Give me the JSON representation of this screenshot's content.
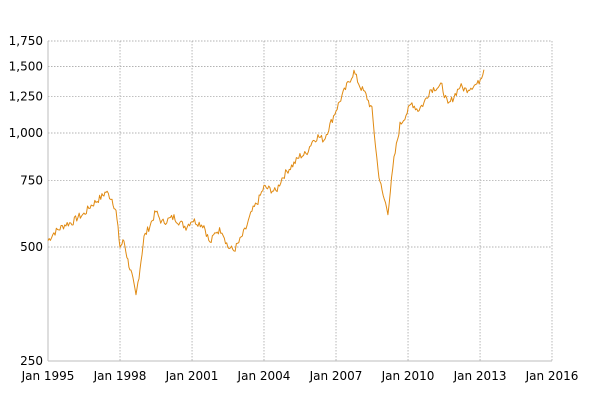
{
  "chart_data": {
    "type": "line",
    "y_scale": "log",
    "grid": true,
    "legend": "none",
    "line_color": "#e08a12",
    "grid_color": "#9a9a9a",
    "xlim": [
      "1995-01-01",
      "2016-01-01"
    ],
    "ylim": [
      250,
      1750
    ],
    "x_ticks": [
      {
        "date": "1995-01-01",
        "label": "Jan 1995"
      },
      {
        "date": "1998-01-01",
        "label": "Jan 1998"
      },
      {
        "date": "2001-01-01",
        "label": "Jan 2001"
      },
      {
        "date": "2004-01-01",
        "label": "Jan 2004"
      },
      {
        "date": "2007-01-01",
        "label": "Jan 2007"
      },
      {
        "date": "2010-01-01",
        "label": "Jan 2010"
      },
      {
        "date": "2013-01-01",
        "label": "Jan 2013"
      },
      {
        "date": "2016-01-01",
        "label": "Jan 2016"
      }
    ],
    "y_ticks": [
      {
        "value": 250,
        "label": "250"
      },
      {
        "value": 500,
        "label": "500"
      },
      {
        "value": 750,
        "label": "750"
      },
      {
        "value": 1000,
        "label": "1,000"
      },
      {
        "value": 1250,
        "label": "1,250"
      },
      {
        "value": 1500,
        "label": "1,500"
      },
      {
        "value": 1750,
        "label": "1,750"
      }
    ],
    "series": [
      {
        "points": [
          [
            "1995-01-01",
            520
          ],
          [
            "1995-04-01",
            545
          ],
          [
            "1995-07-01",
            560
          ],
          [
            "1995-10-01",
            575
          ],
          [
            "1996-01-01",
            580
          ],
          [
            "1996-04-01",
            600
          ],
          [
            "1996-07-01",
            610
          ],
          [
            "1996-10-01",
            640
          ],
          [
            "1997-01-01",
            660
          ],
          [
            "1997-04-01",
            680
          ],
          [
            "1997-06-01",
            700
          ],
          [
            "1997-09-01",
            670
          ],
          [
            "1997-11-01",
            620
          ],
          [
            "1998-01-01",
            500
          ],
          [
            "1998-03-01",
            520
          ],
          [
            "1998-05-01",
            460
          ],
          [
            "1998-07-01",
            420
          ],
          [
            "1998-09-01",
            370
          ],
          [
            "1998-11-01",
            440
          ],
          [
            "1999-01-01",
            530
          ],
          [
            "1999-04-01",
            570
          ],
          [
            "1999-07-01",
            620
          ],
          [
            "1999-10-01",
            580
          ],
          [
            "2000-01-01",
            590
          ],
          [
            "2000-04-01",
            600
          ],
          [
            "2000-07-01",
            580
          ],
          [
            "2000-10-01",
            565
          ],
          [
            "2001-01-01",
            590
          ],
          [
            "2001-04-01",
            580
          ],
          [
            "2001-07-01",
            570
          ],
          [
            "2001-10-01",
            510
          ],
          [
            "2002-01-01",
            550
          ],
          [
            "2002-04-01",
            555
          ],
          [
            "2002-07-01",
            500
          ],
          [
            "2002-10-01",
            490
          ],
          [
            "2003-01-01",
            520
          ],
          [
            "2003-04-01",
            560
          ],
          [
            "2003-07-01",
            620
          ],
          [
            "2003-10-01",
            660
          ],
          [
            "2004-01-01",
            720
          ],
          [
            "2004-04-01",
            710
          ],
          [
            "2004-07-01",
            700
          ],
          [
            "2004-10-01",
            760
          ],
          [
            "2005-01-01",
            800
          ],
          [
            "2005-04-01",
            830
          ],
          [
            "2005-07-01",
            870
          ],
          [
            "2005-10-01",
            880
          ],
          [
            "2006-01-01",
            950
          ],
          [
            "2006-04-01",
            980
          ],
          [
            "2006-07-01",
            960
          ],
          [
            "2006-10-01",
            1050
          ],
          [
            "2007-01-01",
            1150
          ],
          [
            "2007-04-01",
            1250
          ],
          [
            "2007-07-01",
            1350
          ],
          [
            "2007-10-01",
            1450
          ],
          [
            "2008-01-01",
            1330
          ],
          [
            "2008-04-01",
            1260
          ],
          [
            "2008-07-01",
            1150
          ],
          [
            "2008-10-01",
            800
          ],
          [
            "2008-12-01",
            700
          ],
          [
            "2009-03-01",
            620
          ],
          [
            "2009-06-01",
            850
          ],
          [
            "2009-09-01",
            1050
          ],
          [
            "2009-12-01",
            1120
          ],
          [
            "2010-03-01",
            1200
          ],
          [
            "2010-06-01",
            1150
          ],
          [
            "2010-09-01",
            1200
          ],
          [
            "2010-12-01",
            1300
          ],
          [
            "2011-03-01",
            1320
          ],
          [
            "2011-06-01",
            1330
          ],
          [
            "2011-09-01",
            1180
          ],
          [
            "2011-12-01",
            1250
          ],
          [
            "2012-03-01",
            1330
          ],
          [
            "2012-06-01",
            1300
          ],
          [
            "2012-09-01",
            1330
          ],
          [
            "2012-12-01",
            1350
          ],
          [
            "2013-03-01",
            1470
          ]
        ]
      }
    ]
  }
}
